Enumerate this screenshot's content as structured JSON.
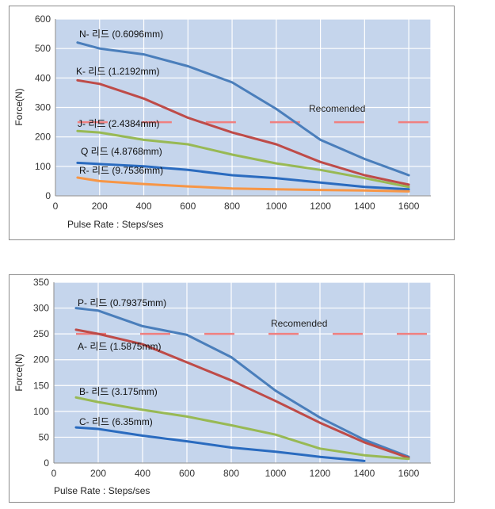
{
  "chart_data": [
    {
      "type": "line",
      "xlabel": "Pulse Rate : Steps/ses",
      "ylabel": "Force(N)",
      "xlim": [
        0,
        1700
      ],
      "ylim": [
        0,
        600
      ],
      "xticks": [
        "0",
        "200",
        "400",
        "600",
        "800",
        "1000",
        "1200",
        "1400",
        "1600"
      ],
      "yticks": [
        "0",
        "100",
        "200",
        "300",
        "400",
        "500",
        "600"
      ],
      "grid": true,
      "annotation": {
        "text": "Recomended",
        "y": 250,
        "color": "#f08080"
      },
      "series": [
        {
          "name": "N- 리드 (0.6096mm)",
          "color": "#4a7ebb",
          "x": [
            100,
            200,
            400,
            600,
            800,
            1000,
            1200,
            1400,
            1600
          ],
          "y": [
            520,
            500,
            480,
            440,
            385,
            295,
            190,
            125,
            70
          ]
        },
        {
          "name": "K- 리드 (1.2192mm)",
          "color": "#be4b48",
          "x": [
            100,
            200,
            400,
            600,
            800,
            1000,
            1200,
            1400,
            1600
          ],
          "y": [
            392,
            380,
            330,
            265,
            215,
            175,
            115,
            70,
            38
          ]
        },
        {
          "name": "J- 리드 (2.4384mm)",
          "color": "#98b954",
          "x": [
            100,
            200,
            400,
            600,
            800,
            1000,
            1200,
            1400,
            1600
          ],
          "y": [
            220,
            215,
            190,
            175,
            140,
            110,
            88,
            60,
            30
          ]
        },
        {
          "name": "Q 리드 (4.8768mm)",
          "color": "#2a6bbf",
          "x": [
            100,
            200,
            400,
            600,
            800,
            1000,
            1200,
            1400,
            1600
          ],
          "y": [
            112,
            108,
            100,
            88,
            70,
            60,
            45,
            30,
            22
          ]
        },
        {
          "name": "R- 리드 (9.7536mm)",
          "color": "#f79646",
          "x": [
            100,
            200,
            400,
            600,
            800,
            1000,
            1200,
            1400,
            1600
          ],
          "y": [
            62,
            50,
            40,
            32,
            25,
            22,
            20,
            18,
            15
          ]
        }
      ]
    },
    {
      "type": "line",
      "xlabel": "Pulse Rate : Steps/ses",
      "ylabel": "Force(N)",
      "xlim": [
        0,
        1700
      ],
      "ylim": [
        0,
        350
      ],
      "xticks": [
        "0",
        "200",
        "400",
        "600",
        "800",
        "1000",
        "1200",
        "1400",
        "1600"
      ],
      "yticks": [
        "0",
        "50",
        "100",
        "150",
        "200",
        "250",
        "300",
        "350"
      ],
      "grid": true,
      "annotation": {
        "text": "Recomended",
        "y": 250,
        "color": "#f08080"
      },
      "series": [
        {
          "name": "P- 리드 (0.79375mm)",
          "color": "#4a7ebb",
          "x": [
            100,
            200,
            400,
            600,
            800,
            1000,
            1200,
            1400,
            1600
          ],
          "y": [
            300,
            295,
            265,
            248,
            205,
            140,
            88,
            45,
            12
          ]
        },
        {
          "name": "A- 리드 (1.5875mm)",
          "color": "#be4b48",
          "x": [
            100,
            200,
            400,
            600,
            800,
            1000,
            1200,
            1400,
            1600
          ],
          "y": [
            258,
            250,
            230,
            195,
            160,
            120,
            78,
            40,
            10
          ]
        },
        {
          "name": "B- 리드 (3.175mm)",
          "color": "#98b954",
          "x": [
            100,
            200,
            400,
            600,
            800,
            1000,
            1200,
            1400,
            1600
          ],
          "y": [
            127,
            118,
            103,
            90,
            73,
            55,
            28,
            15,
            8
          ]
        },
        {
          "name": "C- 리드 (6.35mm)",
          "color": "#2a6bbf",
          "x": [
            100,
            200,
            400,
            600,
            800,
            1000,
            1200,
            1400
          ],
          "y": [
            69,
            66,
            53,
            42,
            30,
            22,
            12,
            4
          ]
        }
      ]
    }
  ]
}
